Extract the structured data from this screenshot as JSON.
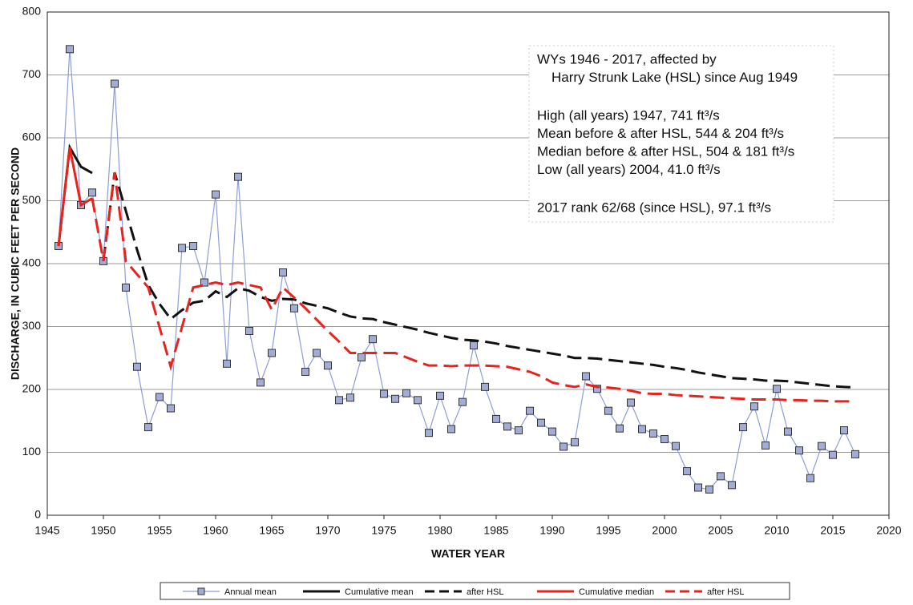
{
  "chart_data": {
    "type": "line",
    "xlabel": "WATER YEAR",
    "ylabel": "DISCHARGE, IN CUBIC FEET PER SECOND",
    "annotation": [
      [
        "WYs 1946 - 2017, affected by",
        "Harry Strunk Lake (HSL) since Aug 1949"
      ],
      [
        "High (all years) 1947, 741 ft³/s",
        "Mean before & after HSL, 544 & 204 ft³/s",
        "Median before & after HSL, 504 & 181 ft³/s",
        "Low (all years) 2004, 41.0 ft³/s"
      ],
      [
        "2017 rank 62/68 (since HSL), 97.1 ft³/s"
      ]
    ],
    "x": [
      1946,
      1947,
      1948,
      1949,
      1950,
      1951,
      1952,
      1953,
      1954,
      1955,
      1956,
      1957,
      1958,
      1959,
      1960,
      1961,
      1962,
      1963,
      1964,
      1965,
      1966,
      1967,
      1968,
      1969,
      1970,
      1971,
      1972,
      1973,
      1974,
      1975,
      1976,
      1977,
      1978,
      1979,
      1980,
      1981,
      1982,
      1983,
      1984,
      1985,
      1986,
      1987,
      1988,
      1989,
      1990,
      1991,
      1992,
      1993,
      1994,
      1995,
      1996,
      1997,
      1998,
      1999,
      2000,
      2001,
      2002,
      2003,
      2004,
      2005,
      2006,
      2007,
      2008,
      2009,
      2010,
      2011,
      2012,
      2013,
      2014,
      2015,
      2016,
      2017
    ],
    "series": [
      {
        "name": "Annual mean",
        "color": "#8c9ed8",
        "markers": true,
        "dash": false,
        "values": [
          428,
          741,
          493,
          513,
          404,
          686,
          362,
          236,
          140,
          188,
          170,
          425,
          428,
          370,
          510,
          241,
          538,
          293,
          211,
          258,
          386,
          329,
          228,
          258,
          238,
          183,
          187,
          251,
          280,
          193,
          185,
          194,
          183,
          131,
          190,
          137,
          180,
          270,
          204,
          153,
          141,
          135,
          166,
          147,
          133,
          109,
          116,
          221,
          201,
          166,
          138,
          179,
          137,
          130,
          121,
          110,
          70,
          44,
          41,
          62,
          48,
          140,
          173,
          111,
          201,
          133,
          103,
          59,
          110,
          96,
          135,
          97
        ]
      },
      {
        "name": "Cumulative mean",
        "color": "#111111",
        "markers": false,
        "dash": false,
        "values": [
          428,
          585,
          554,
          544,
          null,
          null,
          null,
          null,
          null,
          null,
          null,
          null,
          null,
          null,
          null,
          null,
          null,
          null,
          null,
          null,
          null,
          null,
          null,
          null,
          null,
          null,
          null,
          null,
          null,
          null,
          null,
          null,
          null,
          null,
          null,
          null,
          null,
          null,
          null,
          null,
          null,
          null,
          null,
          null,
          null,
          null,
          null,
          null,
          null,
          null,
          null,
          null,
          null,
          null,
          null,
          null,
          null,
          null,
          null,
          null,
          null,
          null,
          null,
          null,
          null,
          null,
          null,
          null,
          null,
          null,
          null,
          null
        ]
      },
      {
        "name": "after HSL",
        "color": "#111111",
        "markers": false,
        "dash": true,
        "values": [
          null,
          null,
          null,
          null,
          404,
          545,
          484,
          422,
          366,
          336,
          312,
          326,
          338,
          341,
          356,
          347,
          361,
          357,
          347,
          341,
          344,
          343,
          337,
          333,
          329,
          322,
          316,
          313,
          312,
          307,
          303,
          299,
          295,
          290,
          286,
          282,
          279,
          278,
          276,
          273,
          269,
          266,
          263,
          260,
          257,
          254,
          250,
          250,
          249,
          247,
          245,
          243,
          241,
          239,
          236,
          234,
          231,
          227,
          224,
          221,
          218,
          217,
          216,
          214,
          214,
          213,
          211,
          209,
          207,
          205,
          204,
          203
        ]
      },
      {
        "name": "Cumulative median",
        "color": "#e8231e",
        "markers": false,
        "dash": false,
        "values": [
          428,
          585,
          493,
          504,
          null,
          null,
          null,
          null,
          null,
          null,
          null,
          null,
          null,
          null,
          null,
          null,
          null,
          null,
          null,
          null,
          null,
          null,
          null,
          null,
          null,
          null,
          null,
          null,
          null,
          null,
          null,
          null,
          null,
          null,
          null,
          null,
          null,
          null,
          null,
          null,
          null,
          null,
          null,
          null,
          null,
          null,
          null,
          null,
          null,
          null,
          null,
          null,
          null,
          null,
          null,
          null,
          null,
          null,
          null,
          null,
          null,
          null,
          null,
          null,
          null,
          null,
          null,
          null,
          null,
          null,
          null,
          null
        ]
      },
      {
        "name": "after HSL",
        "color": "#e8231e",
        "markers": false,
        "dash": true,
        "values": [
          null,
          null,
          null,
          504,
          404,
          545,
          404,
          383,
          362,
          299,
          236,
          299,
          362,
          366,
          370,
          366,
          370,
          366,
          362,
          327,
          362,
          346,
          329,
          311,
          293,
          276,
          258,
          258,
          258,
          258,
          258,
          251,
          244,
          238,
          238,
          237,
          238,
          238,
          238,
          237,
          236,
          232,
          228,
          221,
          211,
          207,
          204,
          208,
          204,
          203,
          201,
          198,
          194,
          193,
          193,
          191,
          190,
          189,
          188,
          187,
          186,
          185,
          184,
          184,
          184,
          183,
          183,
          182,
          182,
          181,
          181,
          181
        ]
      }
    ],
    "xlim": [
      1945,
      2020
    ],
    "xticks": [
      1945,
      1950,
      1955,
      1960,
      1965,
      1970,
      1975,
      1980,
      1985,
      1990,
      1995,
      2000,
      2005,
      2010,
      2015,
      2020
    ],
    "ylim": [
      0,
      800
    ],
    "yticks": [
      0,
      100,
      200,
      300,
      400,
      500,
      600,
      700,
      800
    ],
    "grid": true,
    "legend": "bottom"
  }
}
